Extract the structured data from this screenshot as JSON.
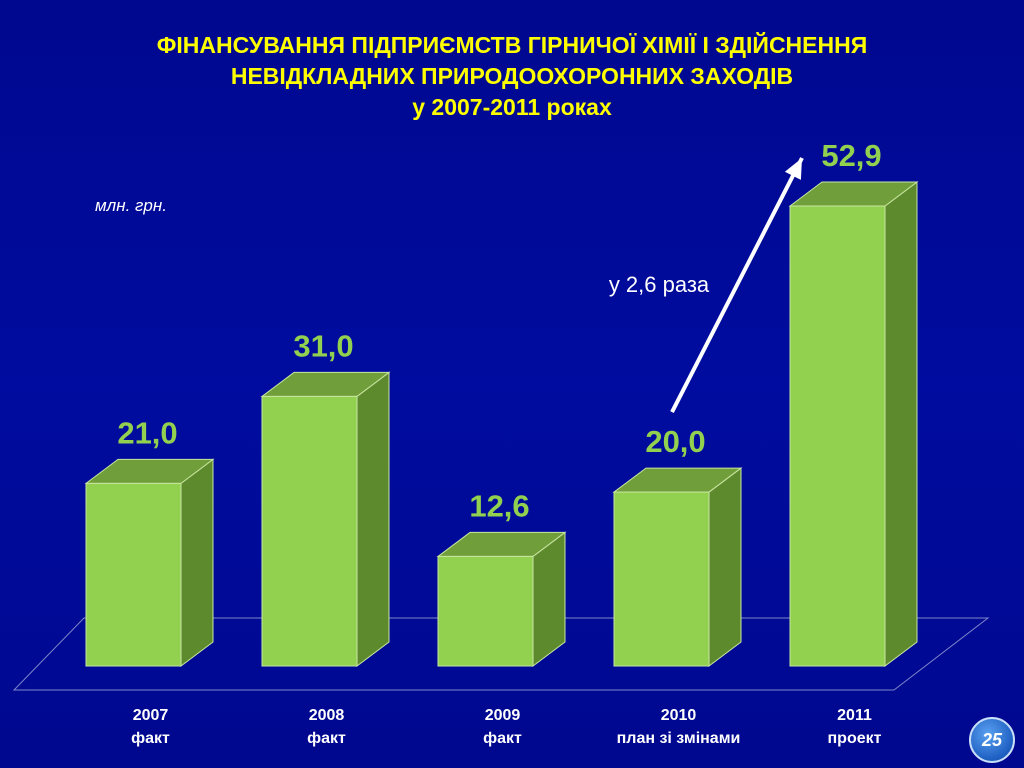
{
  "title": {
    "line1": "ФІНАНСУВАННЯ ПІДПРИЄМСТВ ГІРНИЧОЇ ХІМІЇ І ЗДІЙСНЕННЯ",
    "line2": "НЕВІДКЛАДНИХ ПРИРОДООХОРОННИХ ЗАХОДІВ",
    "line3": "у 2007-2011 роках"
  },
  "unit_label": "млн. грн.",
  "annotation": "у 2,6 раза",
  "page_number": "25",
  "colors": {
    "background": "#000a99",
    "title": "#ffff00",
    "bar_front": "#92d050",
    "bar_side": "#5e8a2e",
    "bar_top": "#6f9e3a",
    "value_label": "#92d050",
    "axis_label": "#ffffff"
  },
  "chart_data": {
    "type": "bar",
    "title": "ФІНАНСУВАННЯ ПІДПРИЄМСТВ ГІРНИЧОЇ ХІМІЇ І ЗДІЙСНЕННЯ НЕВІДКЛАДНИХ ПРИРОДООХОРОННИХ ЗАХОДІВ у 2007-2011 роках",
    "ylabel": "млн. грн.",
    "xlabel": "",
    "ylim": [
      0,
      52.9
    ],
    "grid": false,
    "categories": [
      {
        "year": "2007",
        "note": "факт"
      },
      {
        "year": "2008",
        "note": "факт"
      },
      {
        "year": "2009",
        "note": "факт"
      },
      {
        "year": "2010",
        "note": "план зі змінами"
      },
      {
        "year": "2011",
        "note": "проект"
      }
    ],
    "values": [
      21.0,
      31.0,
      12.6,
      20.0,
      52.9
    ],
    "value_labels": [
      "21,0",
      "31,0",
      "12,6",
      "20,0",
      "52,9"
    ],
    "three_d": true
  }
}
